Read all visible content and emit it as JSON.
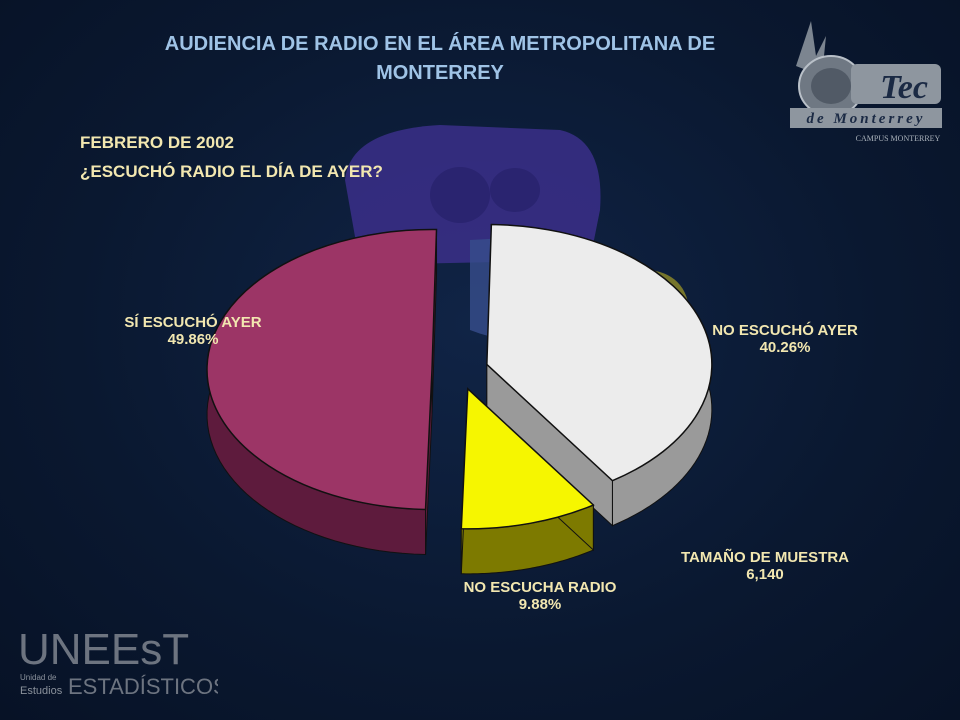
{
  "title": "AUDIENCIA DE RADIO EN EL ÁREA METROPOLITANA DE MONTERREY",
  "subtitle_date": "FEBRERO DE 2002",
  "subtitle_question": "¿ESCUCHÓ RADIO EL DÍA DE AYER?",
  "sample": {
    "label": "TAMAÑO DE MUESTRA",
    "value": "6,140"
  },
  "logos": {
    "tec": {
      "main": "Tec",
      "sub": "de Monterrey",
      "campus": "CAMPUS MONTERREY"
    },
    "uneest": {
      "main": "UNEEsT",
      "line1": "Unidad de",
      "line2": "Estudios",
      "line3": "ESTADÍSTICOS"
    }
  },
  "colors": {
    "title": "#9fc3e6",
    "labels": "#f2e7b0",
    "background": "#0a1830"
  },
  "chart_data": {
    "type": "pie",
    "style": "3d-exploded",
    "slices": [
      {
        "label": "SÍ ESCUCHÓ AYER",
        "value": 49.86,
        "display": "49.86%",
        "color": "#9c3566",
        "side": "#5e1b3d"
      },
      {
        "label": "NO ESCUCHÓ AYER",
        "value": 40.26,
        "display": "40.26%",
        "color": "#ececec",
        "side": "#9a9a9a"
      },
      {
        "label": "NO ESCUCHA RADIO",
        "value": 9.88,
        "display": "9.88%",
        "color": "#f6f600",
        "side": "#7d7a00"
      }
    ]
  }
}
